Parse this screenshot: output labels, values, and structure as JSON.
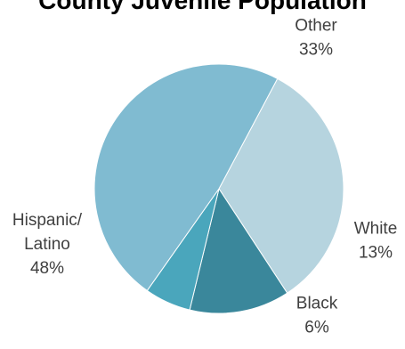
{
  "chart_data": {
    "type": "pie",
    "title": "County Juvenile Population",
    "slices": [
      {
        "label": "Other",
        "value": 33,
        "value_label": "33%",
        "color": "#B6D4DF"
      },
      {
        "label": "White",
        "value": 13,
        "value_label": "13%",
        "color": "#3A879B"
      },
      {
        "label": "Black",
        "value": 6,
        "value_label": "6%",
        "color": "#4AA6BC"
      },
      {
        "label": "Hispanic/ Latino",
        "value": 48,
        "value_label": "48%",
        "color": "#80BBD1"
      }
    ]
  }
}
